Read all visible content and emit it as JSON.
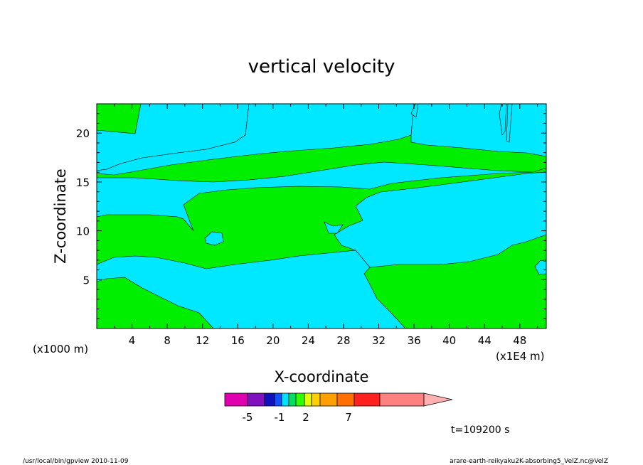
{
  "chart_data": {
    "type": "contour",
    "title": "vertical velocity",
    "xlabel": "X-coordinate",
    "ylabel": "Z-coordinate",
    "x_unit_label": "(x1000 m)",
    "x_scale_label": "(x1E4 m)",
    "x_ticks": [
      "4",
      "8",
      "12",
      "16",
      "20",
      "24",
      "28",
      "32",
      "36",
      "40",
      "44",
      "48"
    ],
    "y_ticks": [
      "5",
      "10",
      "15",
      "20"
    ],
    "time_label": "t=109200 s",
    "colorbar": {
      "colors": [
        "#e000b0",
        "#8010c0",
        "#1010c0",
        "#1050ff",
        "#00e0ff",
        "#00e060",
        "#30ff00",
        "#e0ff00",
        "#ffd000",
        "#ffa000",
        "#ff7000",
        "#ff2020",
        "#ff8080",
        "#ffb0b0"
      ],
      "tick_labels": [
        "-5",
        "-1",
        "2",
        "7"
      ]
    },
    "fill_colors": {
      "negative": "#00e8ff",
      "positive": "#00ee00"
    }
  },
  "footer": {
    "left": "/usr/local/bin/gpview   2010-11-09",
    "right": "arare-earth-reikyaku2K-absorbing5_VelZ.nc@VelZ"
  }
}
